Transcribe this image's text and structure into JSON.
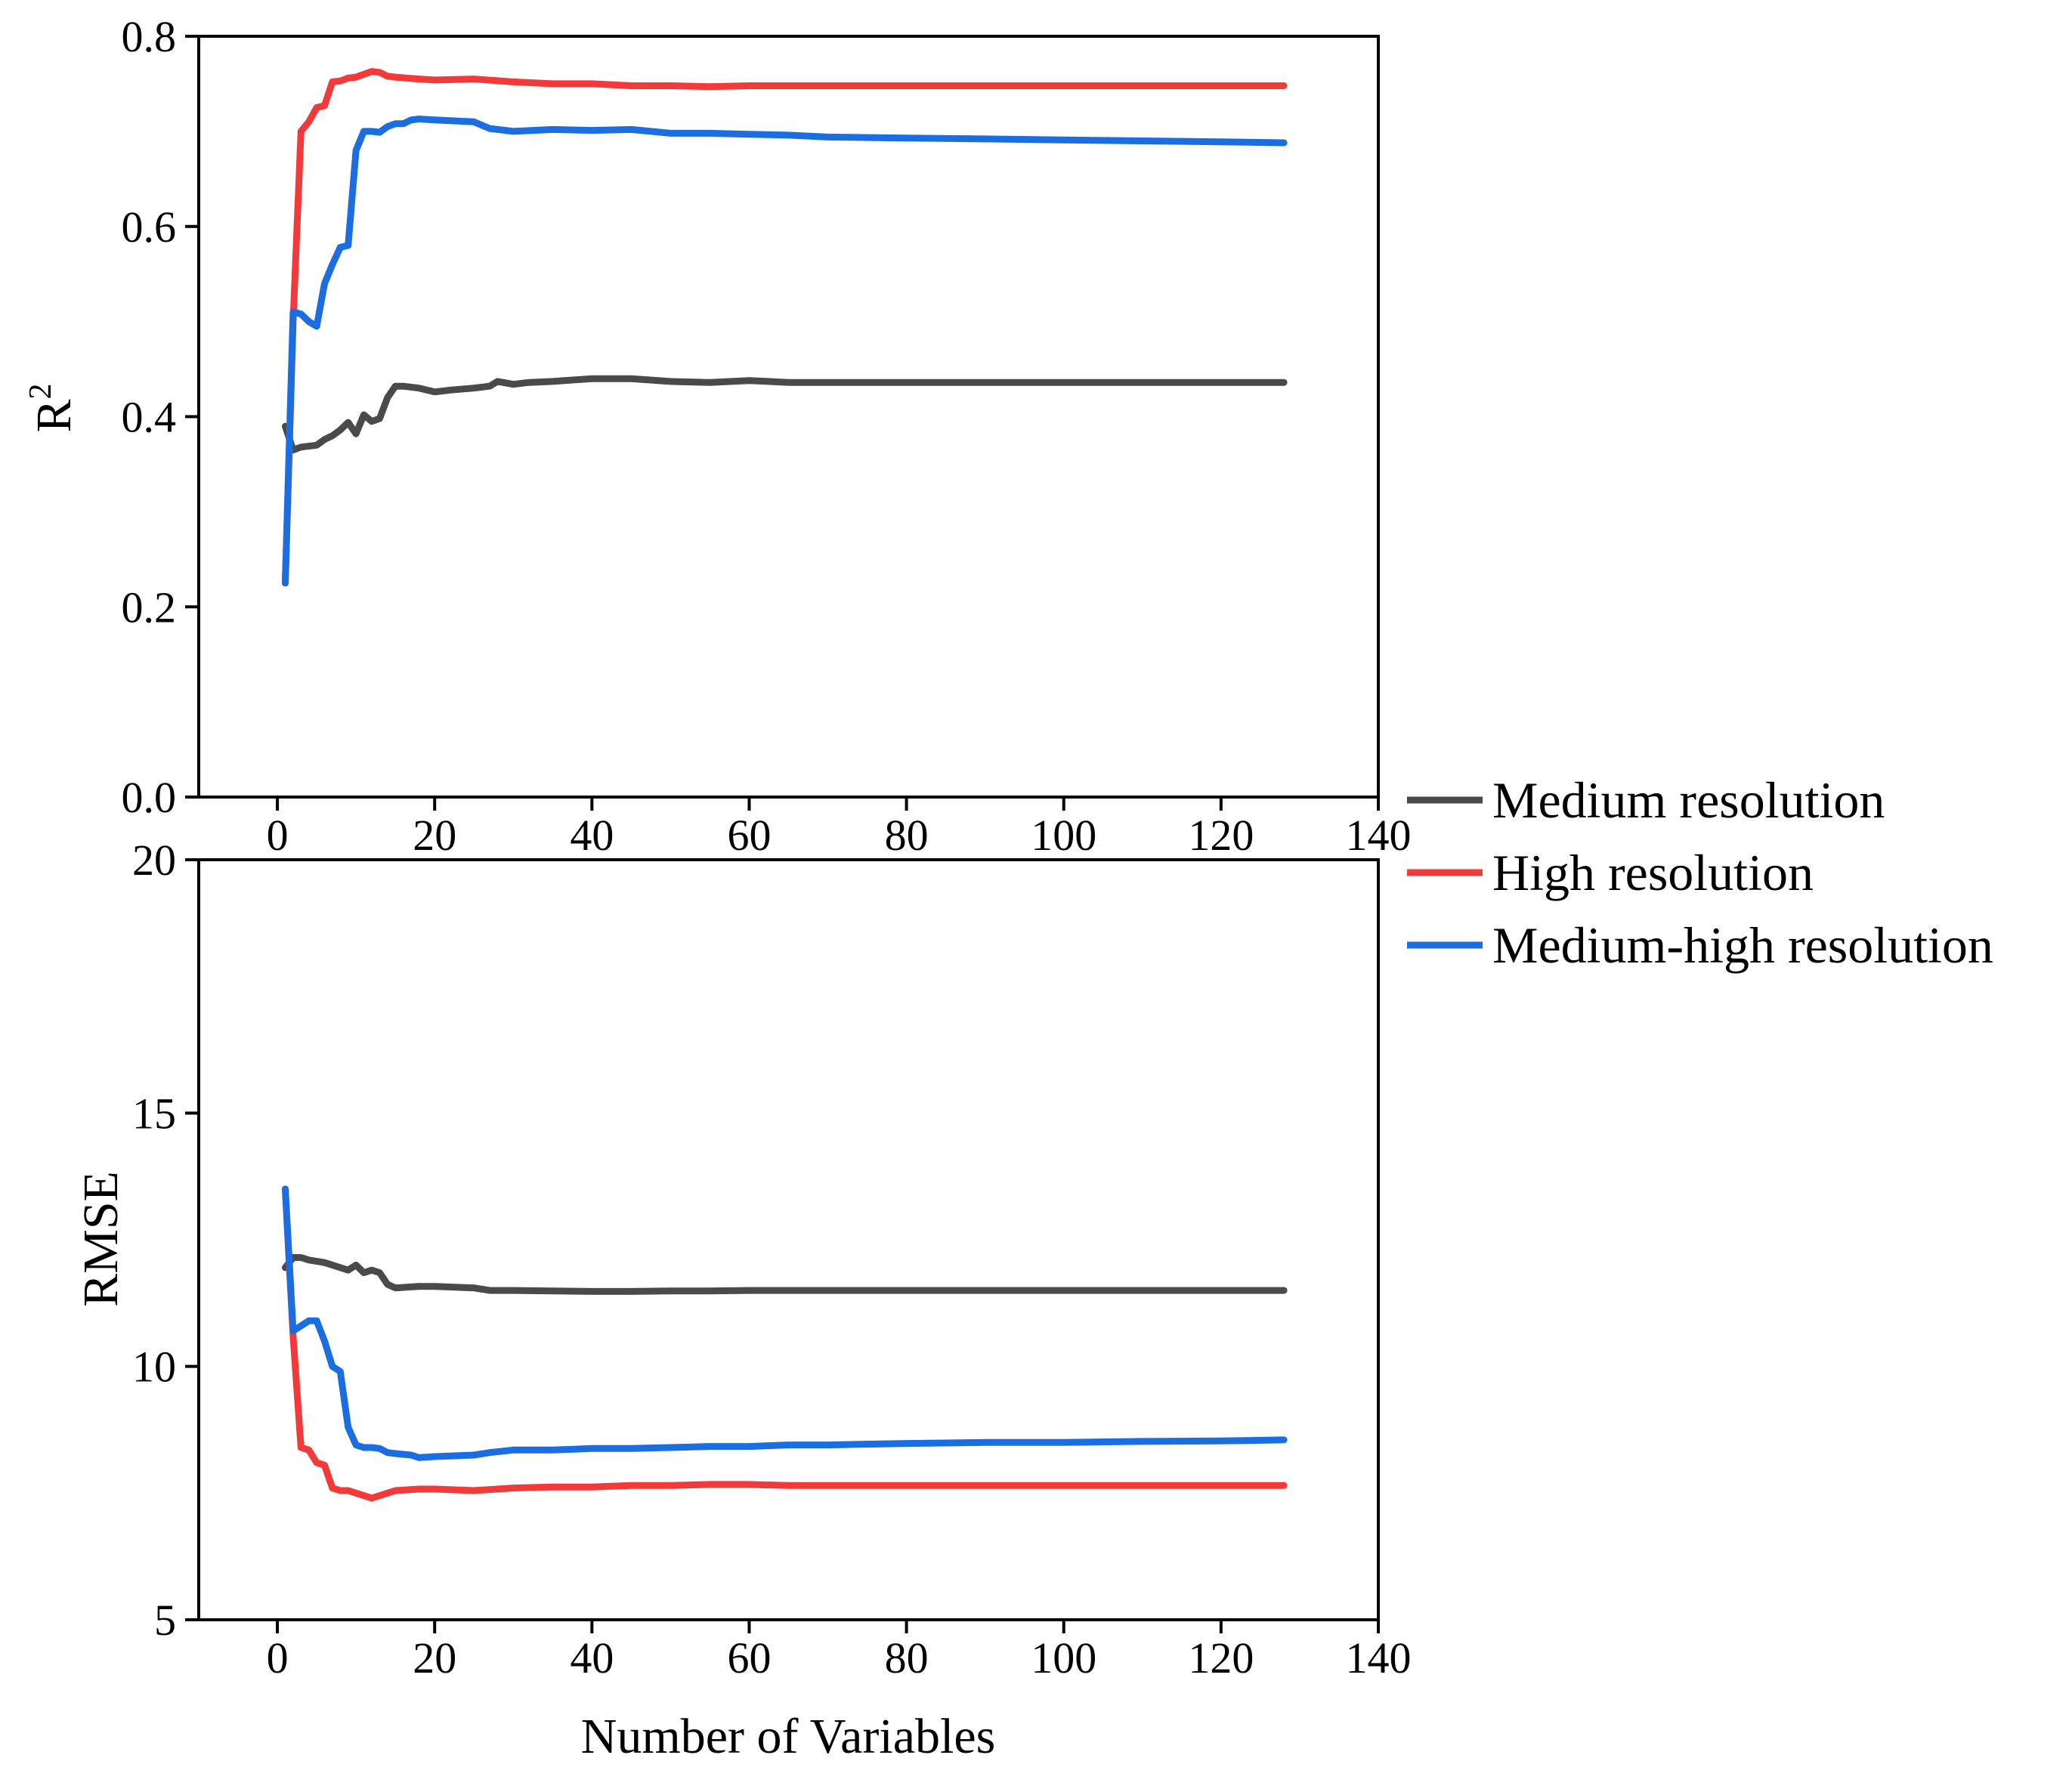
{
  "chart_data": [
    {
      "type": "line",
      "panel": "top",
      "ylabel": "R",
      "ylabel_superscript": "2",
      "xlabel": "",
      "xlim": [
        -10,
        140
      ],
      "ylim": [
        0.0,
        0.8
      ],
      "xticks": [
        0,
        20,
        40,
        60,
        80,
        100,
        120,
        140
      ],
      "yticks": [
        0.0,
        0.2,
        0.4,
        0.6,
        0.8
      ],
      "xtick_labels": [
        "0",
        "20",
        "40",
        "60",
        "80",
        "100",
        "120",
        "140"
      ],
      "ytick_labels": [
        "0.0",
        "0.2",
        "0.4",
        "0.6",
        "0.8"
      ],
      "series": [
        {
          "name": "Medium resolution",
          "color": "#4a4a4a",
          "points": [
            [
              1,
              0.39
            ],
            [
              2,
              0.365
            ],
            [
              3,
              0.368
            ],
            [
              5,
              0.37
            ],
            [
              6,
              0.376
            ],
            [
              7,
              0.38
            ],
            [
              8,
              0.386
            ],
            [
              9,
              0.394
            ],
            [
              10,
              0.382
            ],
            [
              11,
              0.402
            ],
            [
              12,
              0.395
            ],
            [
              13,
              0.398
            ],
            [
              14,
              0.42
            ],
            [
              15,
              0.432
            ],
            [
              16,
              0.432
            ],
            [
              18,
              0.43
            ],
            [
              20,
              0.426
            ],
            [
              22,
              0.428
            ],
            [
              25,
              0.43
            ],
            [
              27,
              0.432
            ],
            [
              28,
              0.437
            ],
            [
              30,
              0.434
            ],
            [
              32,
              0.436
            ],
            [
              35,
              0.437
            ],
            [
              40,
              0.44
            ],
            [
              45,
              0.44
            ],
            [
              50,
              0.437
            ],
            [
              55,
              0.436
            ],
            [
              60,
              0.438
            ],
            [
              65,
              0.436
            ],
            [
              70,
              0.436
            ],
            [
              80,
              0.436
            ],
            [
              100,
              0.436
            ],
            [
              128,
              0.436
            ]
          ]
        },
        {
          "name": "High resolution",
          "color": "#f23a3a",
          "points": [
            [
              1,
              0.225
            ],
            [
              2,
              0.5
            ],
            [
              3,
              0.7
            ],
            [
              4,
              0.71
            ],
            [
              5,
              0.725
            ],
            [
              6,
              0.727
            ],
            [
              7,
              0.752
            ],
            [
              8,
              0.753
            ],
            [
              9,
              0.756
            ],
            [
              10,
              0.757
            ],
            [
              11,
              0.76
            ],
            [
              12,
              0.763
            ],
            [
              13,
              0.762
            ],
            [
              14,
              0.758
            ],
            [
              15,
              0.757
            ],
            [
              18,
              0.755
            ],
            [
              20,
              0.754
            ],
            [
              25,
              0.755
            ],
            [
              30,
              0.752
            ],
            [
              35,
              0.75
            ],
            [
              40,
              0.75
            ],
            [
              45,
              0.748
            ],
            [
              50,
              0.748
            ],
            [
              55,
              0.747
            ],
            [
              60,
              0.748
            ],
            [
              65,
              0.748
            ],
            [
              70,
              0.748
            ],
            [
              80,
              0.748
            ],
            [
              100,
              0.748
            ],
            [
              128,
              0.748
            ]
          ]
        },
        {
          "name": "Medium-high resolution",
          "color": "#1a6ee0",
          "points": [
            [
              1,
              0.225
            ],
            [
              2,
              0.51
            ],
            [
              3,
              0.508
            ],
            [
              4,
              0.5
            ],
            [
              5,
              0.495
            ],
            [
              6,
              0.54
            ],
            [
              7,
              0.56
            ],
            [
              8,
              0.578
            ],
            [
              9,
              0.58
            ],
            [
              10,
              0.68
            ],
            [
              11,
              0.7
            ],
            [
              12,
              0.7
            ],
            [
              13,
              0.699
            ],
            [
              14,
              0.705
            ],
            [
              15,
              0.708
            ],
            [
              16,
              0.708
            ],
            [
              17,
              0.712
            ],
            [
              18,
              0.713
            ],
            [
              20,
              0.712
            ],
            [
              25,
              0.71
            ],
            [
              27,
              0.703
            ],
            [
              30,
              0.7
            ],
            [
              35,
              0.702
            ],
            [
              40,
              0.701
            ],
            [
              45,
              0.702
            ],
            [
              50,
              0.698
            ],
            [
              55,
              0.698
            ],
            [
              60,
              0.697
            ],
            [
              65,
              0.696
            ],
            [
              70,
              0.694
            ],
            [
              80,
              0.693
            ],
            [
              90,
              0.692
            ],
            [
              100,
              0.691
            ],
            [
              110,
              0.69
            ],
            [
              120,
              0.689
            ],
            [
              128,
              0.688
            ]
          ]
        }
      ]
    },
    {
      "type": "line",
      "panel": "bottom",
      "ylabel": "RMSE",
      "xlabel": "Number of Variables",
      "xlim": [
        -10,
        140
      ],
      "ylim": [
        5,
        20
      ],
      "xticks": [
        0,
        20,
        40,
        60,
        80,
        100,
        120,
        140
      ],
      "yticks": [
        5,
        10,
        15,
        20
      ],
      "xtick_labels": [
        "0",
        "20",
        "40",
        "60",
        "80",
        "100",
        "120",
        "140"
      ],
      "ytick_labels": [
        "5",
        "10",
        "15",
        "20"
      ],
      "series": [
        {
          "name": "Medium resolution",
          "color": "#4a4a4a",
          "points": [
            [
              1,
              11.95
            ],
            [
              2,
              12.15
            ],
            [
              3,
              12.15
            ],
            [
              4,
              12.1
            ],
            [
              6,
              12.05
            ],
            [
              8,
              11.95
            ],
            [
              9,
              11.9
            ],
            [
              10,
              12.0
            ],
            [
              11,
              11.85
            ],
            [
              12,
              11.9
            ],
            [
              13,
              11.85
            ],
            [
              14,
              11.62
            ],
            [
              15,
              11.55
            ],
            [
              18,
              11.58
            ],
            [
              20,
              11.58
            ],
            [
              25,
              11.55
            ],
            [
              27,
              11.5
            ],
            [
              30,
              11.5
            ],
            [
              35,
              11.49
            ],
            [
              40,
              11.48
            ],
            [
              45,
              11.48
            ],
            [
              50,
              11.49
            ],
            [
              55,
              11.49
            ],
            [
              60,
              11.5
            ],
            [
              65,
              11.5
            ],
            [
              80,
              11.5
            ],
            [
              100,
              11.5
            ],
            [
              128,
              11.5
            ]
          ]
        },
        {
          "name": "High resolution",
          "color": "#f23a3a",
          "points": [
            [
              1,
              13.5
            ],
            [
              2,
              10.6
            ],
            [
              3,
              8.4
            ],
            [
              4,
              8.35
            ],
            [
              5,
              8.1
            ],
            [
              6,
              8.05
            ],
            [
              7,
              7.6
            ],
            [
              8,
              7.55
            ],
            [
              9,
              7.55
            ],
            [
              10,
              7.5
            ],
            [
              11,
              7.45
            ],
            [
              12,
              7.4
            ],
            [
              13,
              7.45
            ],
            [
              15,
              7.55
            ],
            [
              18,
              7.58
            ],
            [
              20,
              7.58
            ],
            [
              25,
              7.55
            ],
            [
              30,
              7.6
            ],
            [
              35,
              7.62
            ],
            [
              40,
              7.62
            ],
            [
              45,
              7.65
            ],
            [
              50,
              7.65
            ],
            [
              55,
              7.67
            ],
            [
              60,
              7.67
            ],
            [
              65,
              7.65
            ],
            [
              80,
              7.65
            ],
            [
              100,
              7.65
            ],
            [
              128,
              7.65
            ]
          ]
        },
        {
          "name": "Medium-high resolution",
          "color": "#1a6ee0",
          "points": [
            [
              1,
              13.5
            ],
            [
              2,
              10.7
            ],
            [
              3,
              10.8
            ],
            [
              4,
              10.9
            ],
            [
              5,
              10.9
            ],
            [
              6,
              10.5
            ],
            [
              7,
              10.0
            ],
            [
              8,
              9.9
            ],
            [
              9,
              8.8
            ],
            [
              10,
              8.45
            ],
            [
              11,
              8.4
            ],
            [
              12,
              8.4
            ],
            [
              13,
              8.38
            ],
            [
              14,
              8.3
            ],
            [
              15,
              8.28
            ],
            [
              17,
              8.25
            ],
            [
              18,
              8.2
            ],
            [
              20,
              8.22
            ],
            [
              25,
              8.25
            ],
            [
              27,
              8.3
            ],
            [
              30,
              8.35
            ],
            [
              35,
              8.35
            ],
            [
              40,
              8.38
            ],
            [
              45,
              8.38
            ],
            [
              50,
              8.4
            ],
            [
              55,
              8.42
            ],
            [
              60,
              8.42
            ],
            [
              65,
              8.45
            ],
            [
              70,
              8.45
            ],
            [
              80,
              8.48
            ],
            [
              90,
              8.5
            ],
            [
              100,
              8.5
            ],
            [
              110,
              8.52
            ],
            [
              120,
              8.53
            ],
            [
              128,
              8.55
            ]
          ]
        }
      ]
    }
  ],
  "legend": {
    "position": "right-middle",
    "items": [
      "Medium resolution",
      "High resolution",
      "Medium-high resolution"
    ],
    "colors": [
      "#4a4a4a",
      "#f23a3a",
      "#1a6ee0"
    ]
  }
}
